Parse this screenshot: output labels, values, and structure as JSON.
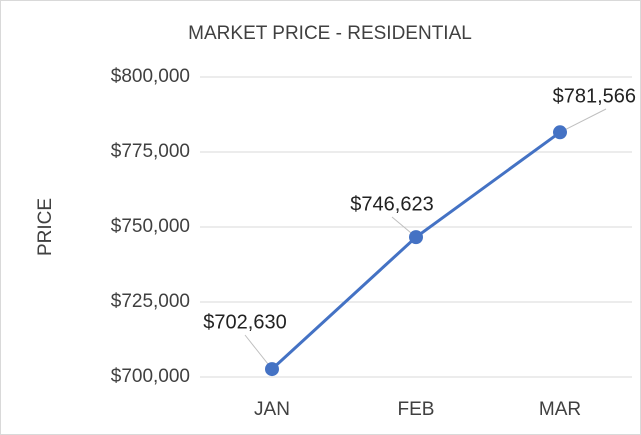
{
  "chart_data": {
    "type": "line",
    "title": "MARKET PRICE - RESIDENTIAL",
    "y_label": "PRICE",
    "categories": [
      "JAN",
      "FEB",
      "MAR"
    ],
    "series": [
      {
        "name": "PRICE",
        "color": "#4472c4",
        "values": [
          702630,
          746623,
          781566
        ],
        "value_labels": [
          "$702,630",
          "$746,623",
          "$781,566"
        ]
      }
    ],
    "ylim": [
      700000,
      800000
    ],
    "yticks": [
      {
        "value": 700000,
        "label": "$700,000"
      },
      {
        "value": 725000,
        "label": "$725,000"
      },
      {
        "value": 750000,
        "label": "$750,000"
      },
      {
        "value": 775000,
        "label": "$775,000"
      },
      {
        "value": 800000,
        "label": "$800,000"
      }
    ],
    "grid": true
  }
}
